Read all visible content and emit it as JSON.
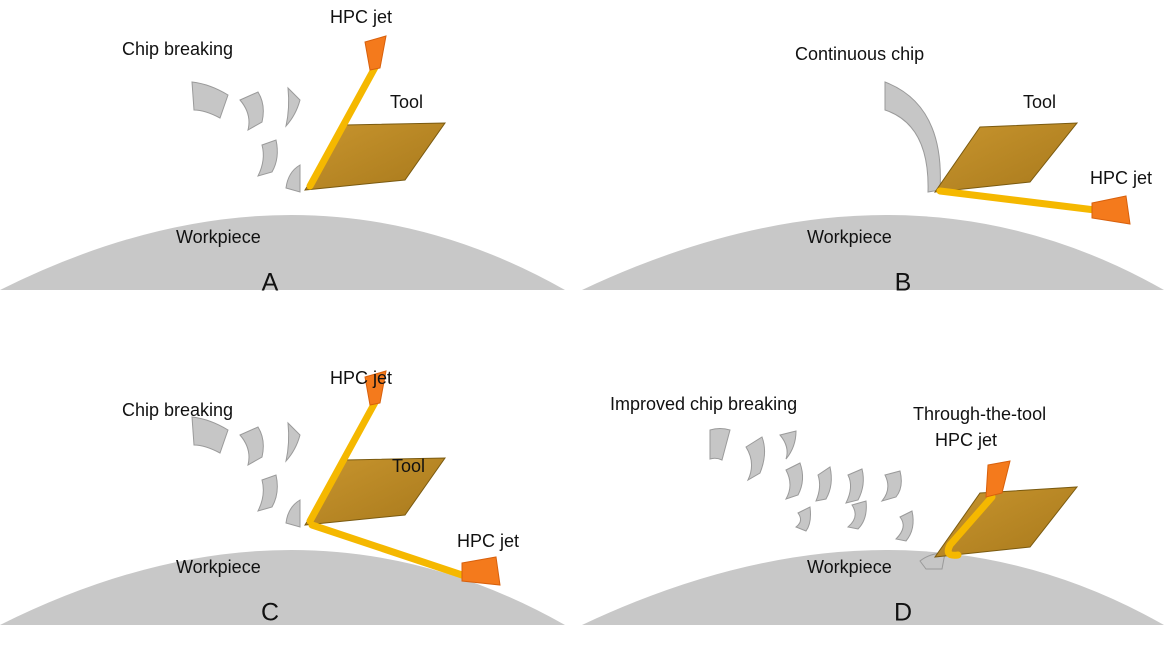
{
  "panels": [
    {
      "letter": "A",
      "chip": "Chip breaking",
      "tool": "Tool",
      "workpiece": "Workpiece",
      "jets": [
        "HPC jet"
      ]
    },
    {
      "letter": "B",
      "chip": "Continuous chip",
      "tool": "Tool",
      "workpiece": "Workpiece",
      "jets": [
        "HPC jet"
      ]
    },
    {
      "letter": "C",
      "chip": "Chip breaking",
      "tool": "Tool",
      "workpiece": "Workpiece",
      "jets": [
        "HPC jet",
        "HPC jet"
      ]
    },
    {
      "letter": "D",
      "chip": "Improved chip breaking",
      "workpiece": "Workpiece",
      "jets": [
        "Through-the-tool",
        "HPC jet"
      ]
    }
  ]
}
